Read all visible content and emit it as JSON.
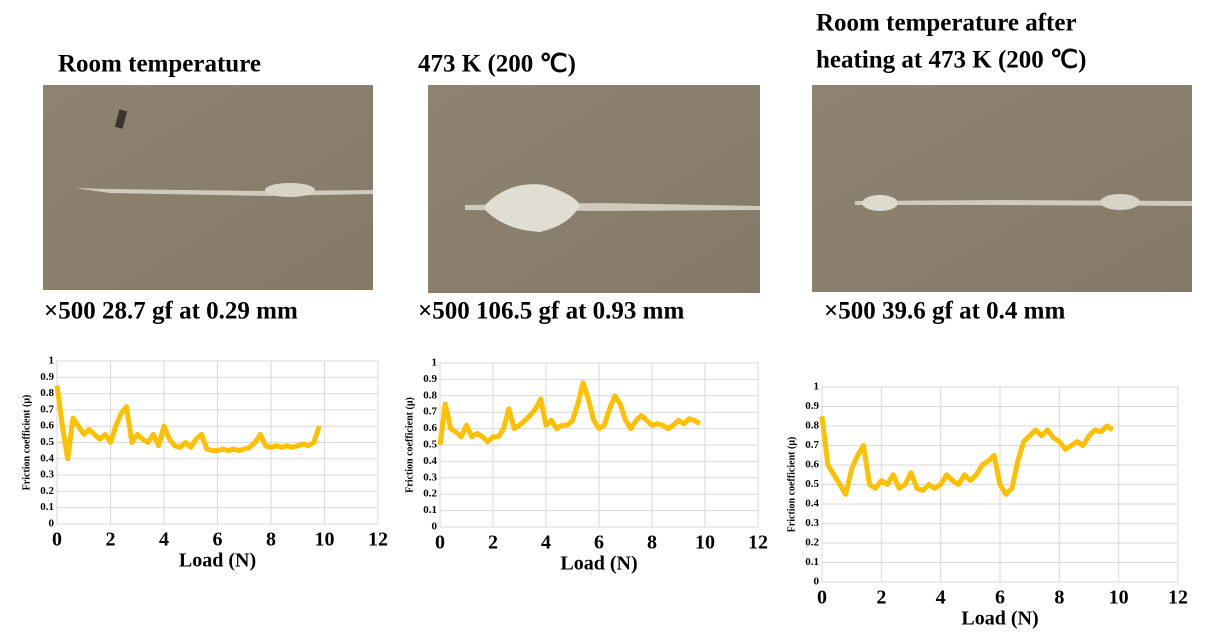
{
  "panels": [
    {
      "title": [
        "Room temperature"
      ],
      "caption": "×500   28.7 gf at 0.29 mm"
    },
    {
      "title": [
        "473 K (200 ℃)"
      ],
      "caption": "×500   106.5 gf at 0.93 mm"
    },
    {
      "title": [
        "Room temperature after",
        "heating at 473 K (200 ℃)"
      ],
      "caption": "×500   39.6 gf at 0.4 mm"
    }
  ],
  "chart_data": [
    {
      "type": "line",
      "xlabel": "Load (N)",
      "ylabel": "Friction coefficient (μ)",
      "color": "#ffc000",
      "x": [
        0,
        0.2,
        0.4,
        0.6,
        0.8,
        1,
        1.2,
        1.4,
        1.6,
        1.8,
        2,
        2.2,
        2.4,
        2.6,
        2.8,
        3,
        3.2,
        3.4,
        3.6,
        3.8,
        4,
        4.2,
        4.4,
        4.6,
        4.8,
        5,
        5.2,
        5.4,
        5.6,
        5.8,
        6,
        6.2,
        6.4,
        6.6,
        6.8,
        7,
        7.2,
        7.4,
        7.6,
        7.8,
        8,
        8.2,
        8.4,
        8.6,
        8.8,
        9,
        9.2,
        9.4,
        9.6,
        9.8
      ],
      "values": [
        0.85,
        0.6,
        0.4,
        0.65,
        0.6,
        0.55,
        0.58,
        0.55,
        0.52,
        0.55,
        0.5,
        0.6,
        0.68,
        0.72,
        0.5,
        0.55,
        0.52,
        0.5,
        0.55,
        0.48,
        0.6,
        0.52,
        0.48,
        0.47,
        0.5,
        0.47,
        0.52,
        0.55,
        0.46,
        0.45,
        0.45,
        0.46,
        0.45,
        0.46,
        0.45,
        0.46,
        0.47,
        0.5,
        0.55,
        0.48,
        0.47,
        0.48,
        0.47,
        0.48,
        0.47,
        0.48,
        0.49,
        0.48,
        0.5,
        0.6
      ],
      "xlim": [
        0,
        12
      ],
      "xticks": [
        0,
        2,
        4,
        6,
        8,
        10,
        12
      ],
      "ylim": [
        0,
        1
      ],
      "yticks": [
        0,
        0.1,
        0.2,
        0.3,
        0.4,
        0.5,
        0.6,
        0.7,
        0.8,
        0.9,
        1
      ],
      "grid": true
    },
    {
      "type": "line",
      "xlabel": "Load (N)",
      "ylabel": "Friction coefficient (μ)",
      "color": "#ffc000",
      "x": [
        0,
        0.2,
        0.4,
        0.6,
        0.8,
        1,
        1.2,
        1.4,
        1.6,
        1.8,
        2,
        2.2,
        2.4,
        2.6,
        2.8,
        3,
        3.2,
        3.4,
        3.6,
        3.8,
        4,
        4.2,
        4.4,
        4.6,
        4.8,
        5,
        5.2,
        5.4,
        5.6,
        5.8,
        6,
        6.2,
        6.4,
        6.6,
        6.8,
        7,
        7.2,
        7.4,
        7.6,
        7.8,
        8,
        8.2,
        8.4,
        8.6,
        8.8,
        9,
        9.2,
        9.4,
        9.6,
        9.8
      ],
      "values": [
        0.5,
        0.75,
        0.6,
        0.58,
        0.55,
        0.62,
        0.55,
        0.57,
        0.55,
        0.52,
        0.55,
        0.55,
        0.6,
        0.72,
        0.6,
        0.62,
        0.65,
        0.68,
        0.72,
        0.78,
        0.62,
        0.65,
        0.6,
        0.62,
        0.62,
        0.65,
        0.75,
        0.88,
        0.78,
        0.65,
        0.6,
        0.62,
        0.72,
        0.8,
        0.75,
        0.65,
        0.6,
        0.65,
        0.68,
        0.65,
        0.62,
        0.63,
        0.62,
        0.6,
        0.62,
        0.65,
        0.63,
        0.66,
        0.65,
        0.63
      ],
      "xlim": [
        0,
        12
      ],
      "xticks": [
        0,
        2,
        4,
        6,
        8,
        10,
        12
      ],
      "ylim": [
        0,
        1
      ],
      "yticks": [
        0,
        0.1,
        0.2,
        0.3,
        0.4,
        0.5,
        0.6,
        0.7,
        0.8,
        0.9,
        1
      ],
      "grid": true
    },
    {
      "type": "line",
      "xlabel": "Load (N)",
      "ylabel": "Friction coefficient (μ)",
      "color": "#ffc000",
      "x": [
        0,
        0.2,
        0.4,
        0.6,
        0.8,
        1,
        1.2,
        1.4,
        1.6,
        1.8,
        2,
        2.2,
        2.4,
        2.6,
        2.8,
        3,
        3.2,
        3.4,
        3.6,
        3.8,
        4,
        4.2,
        4.4,
        4.6,
        4.8,
        5,
        5.2,
        5.4,
        5.6,
        5.8,
        6,
        6.2,
        6.4,
        6.6,
        6.8,
        7,
        7.2,
        7.4,
        7.6,
        7.8,
        8,
        8.2,
        8.4,
        8.6,
        8.8,
        9,
        9.2,
        9.4,
        9.6,
        9.8
      ],
      "values": [
        0.85,
        0.6,
        0.55,
        0.5,
        0.45,
        0.58,
        0.65,
        0.7,
        0.5,
        0.48,
        0.52,
        0.5,
        0.55,
        0.48,
        0.5,
        0.56,
        0.48,
        0.47,
        0.5,
        0.48,
        0.5,
        0.55,
        0.52,
        0.5,
        0.55,
        0.52,
        0.55,
        0.6,
        0.62,
        0.65,
        0.5,
        0.45,
        0.48,
        0.62,
        0.72,
        0.75,
        0.78,
        0.75,
        0.78,
        0.74,
        0.72,
        0.68,
        0.7,
        0.72,
        0.7,
        0.75,
        0.78,
        0.77,
        0.8,
        0.78
      ],
      "xlim": [
        0,
        12
      ],
      "xticks": [
        0,
        2,
        4,
        6,
        8,
        10,
        12
      ],
      "ylim": [
        0,
        1
      ],
      "yticks": [
        0,
        0.1,
        0.2,
        0.3,
        0.4,
        0.5,
        0.6,
        0.7,
        0.8,
        0.9,
        1
      ],
      "grid": true
    }
  ]
}
